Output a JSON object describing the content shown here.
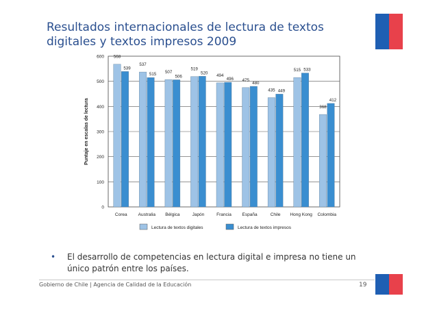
{
  "slide": {
    "title_line1": "Resultados internacionales de lectura de textos",
    "title_line2": "digitales y textos impresos 2009",
    "bullet": "El desarrollo de competencias en lectura digital e impresa no tiene un único patrón entre los países.",
    "bullet_symbol": "•",
    "footer": "Gobierno de Chile | Agencia de Calidad de la Educación",
    "page_number": "19"
  },
  "colors": {
    "flag_blue": "#1f5fb3",
    "flag_red": "#e8414b",
    "title_blue": "#2a4f8f",
    "digital": "#9ec3e6",
    "printed": "#3a8ed0"
  },
  "chart_data": {
    "type": "bar",
    "categories": [
      "Corea",
      "Australia",
      "Bélgica",
      "Japón",
      "Francia",
      "España",
      "Chile",
      "Hong Kong",
      "Colombia"
    ],
    "series": [
      {
        "name": "Lectura de textos digitales",
        "values": [
          568,
          537,
          507,
          519,
          494,
          475,
          435,
          515,
          368
        ]
      },
      {
        "name": "Lectura de textos impresos",
        "values": [
          539,
          515,
          506,
          520,
          496,
          480,
          449,
          533,
          412
        ]
      }
    ],
    "ylabel": "Puntaje en escalas de lectura",
    "ylim": [
      0,
      600
    ],
    "yticks": [
      0,
      100,
      200,
      300,
      400,
      500,
      600
    ],
    "grid": true,
    "legend_position": "bottom"
  }
}
